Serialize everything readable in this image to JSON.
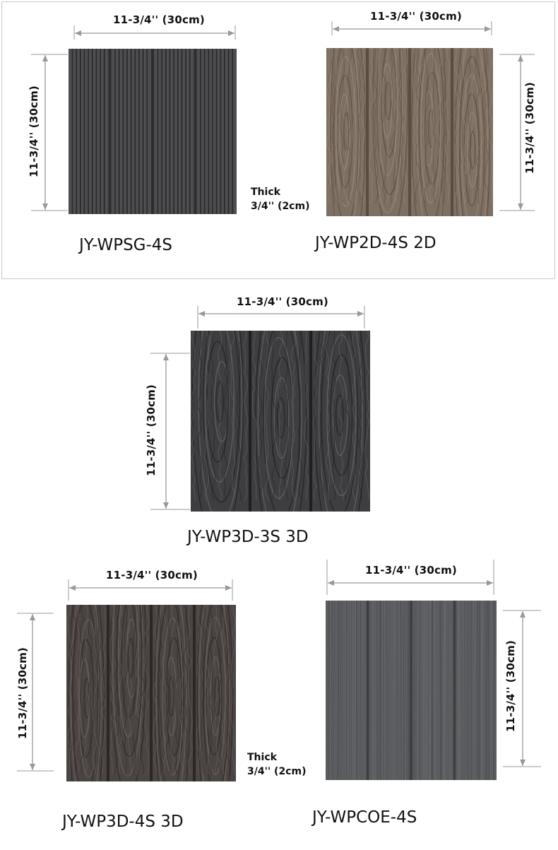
{
  "dimension_label": "11-3/4'' (30cm)",
  "thickness": {
    "line1": "Thick",
    "line2": "3/4'' (2cm)"
  },
  "tiles": [
    {
      "model": "JY-WPSG-4S",
      "slats": 4,
      "texture": "grooved",
      "color": "#4d4d4f",
      "dark": "#2d2d2f",
      "light": "#5e5e60"
    },
    {
      "model": "JY-WP2D-4S 2D",
      "slats": 4,
      "texture": "woodgrain",
      "color": "#7e6f63",
      "dark": "#5b4c42",
      "light": "#9a8a7d"
    },
    {
      "model": "JY-WP3D-3S 3D",
      "slats": 3,
      "texture": "woodgrain",
      "color": "#3e3e40",
      "dark": "#1f1f21",
      "light": "#6a6a6c"
    },
    {
      "model": "JY-WP3D-4S 3D",
      "slats": 4,
      "texture": "woodgrain",
      "color": "#4a4442",
      "dark": "#2c2725",
      "light": "#6f6663"
    },
    {
      "model": "JY-WPCOE-4S",
      "slats": 4,
      "texture": "brushed",
      "color": "#5b5d60",
      "dark": "#3c3e41",
      "light": "#75777a"
    }
  ]
}
